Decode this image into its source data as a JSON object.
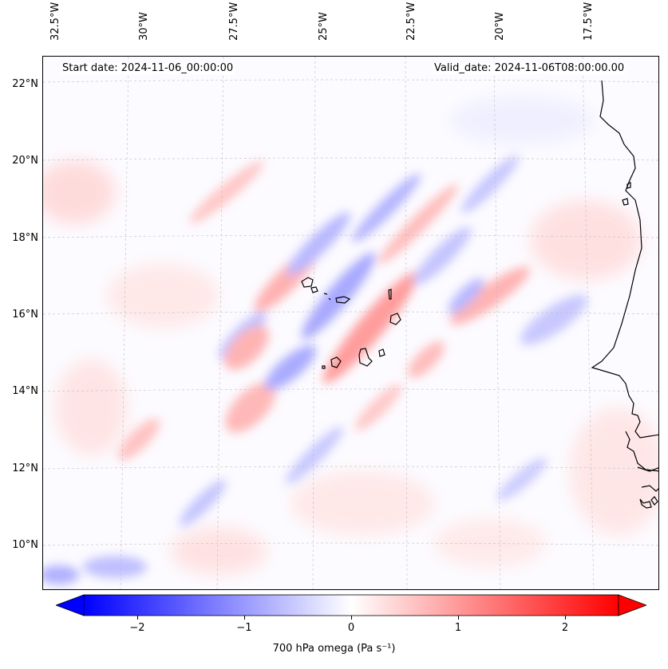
{
  "map": {
    "start_date": "Start date: 2024-11-06_00:00:00",
    "valid_date": "Valid_date: 2024-11-06T08:00:00.00",
    "lon_labels": [
      "32.5°W",
      "30°W",
      "27.5°W",
      "25°W",
      "22.5°W",
      "20°W",
      "17.5°W"
    ],
    "lat_labels": [
      "22°N",
      "20°N",
      "18°N",
      "16°N",
      "14°N",
      "12°N",
      "10°N"
    ],
    "colorbar": {
      "label": "700 hPa omega (Pa s⁻¹)",
      "ticks": [
        "−2",
        "−1",
        "0",
        "1",
        "2"
      ],
      "min": -2.5,
      "max": 2.5,
      "low_color": "#0000ff",
      "mid_color": "#ffffff",
      "high_color": "#ff0000"
    }
  }
}
